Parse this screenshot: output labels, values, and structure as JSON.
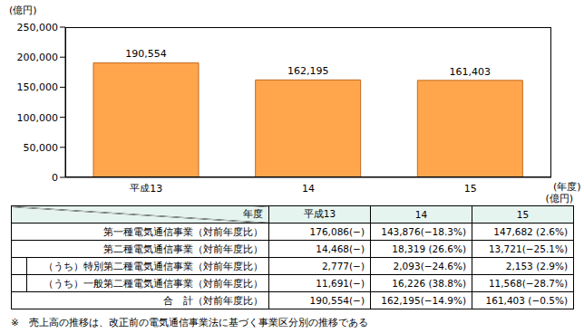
{
  "chart_data": {
    "type": "bar",
    "y_label": "(億円)",
    "x_label": "(年度)",
    "categories": [
      "平成13",
      "14",
      "15"
    ],
    "values": [
      190554,
      162195,
      161403
    ],
    "value_labels": [
      "190,554",
      "162,195",
      "161,403"
    ],
    "data_labels": true,
    "color": "#ffa64d",
    "ylim": [
      0,
      250000
    ],
    "yticks": [
      0,
      {
        "value": 50000,
        "label": "50,000"
      },
      {
        "value": 100000,
        "label": "100,000"
      },
      {
        "value": 150000,
        "label": "150,000"
      },
      {
        "value": 200000,
        "label": "200,000"
      },
      {
        "value": 250000,
        "label": "250,000"
      }
    ],
    "grid": false
  },
  "table": {
    "unit": "(億円)",
    "header": {
      "corner": "年度",
      "columns": [
        "平成13",
        "14",
        "15"
      ]
    },
    "rows": [
      {
        "label": "第一種電気通信事業（対前年度比）",
        "indent": false,
        "cells": [
          "176,086(−)",
          "143,876(−18.3%)",
          "147,682 (2.6%)"
        ]
      },
      {
        "label": "第二種電気通信事業（対前年度比）",
        "indent": false,
        "cells": [
          "14,468(−)",
          "18,319 (26.6%)",
          "13,721(−25.1%)"
        ]
      },
      {
        "label": "（うち）特別第二種電気通信事業（対前年度比）",
        "indent": true,
        "cells": [
          "2,777(−)",
          "2,093(−24.6%)",
          "2,153 (2.9%)"
        ]
      },
      {
        "label": "（うち）一般第二種電気通信事業（対前年度比）",
        "indent": true,
        "cells": [
          "11,691(−)",
          "16,226 (38.8%)",
          "11,568(−28.7%)"
        ]
      },
      {
        "label": "合　計（対前年度比）",
        "indent": false,
        "cells": [
          "190,554(−)",
          "162,195(−14.9%)",
          "161,403 (−0.5%)"
        ]
      }
    ]
  },
  "note": "※　売上高の推移は、改正前の電気通信事業法に基づく事業区分別の推移である"
}
